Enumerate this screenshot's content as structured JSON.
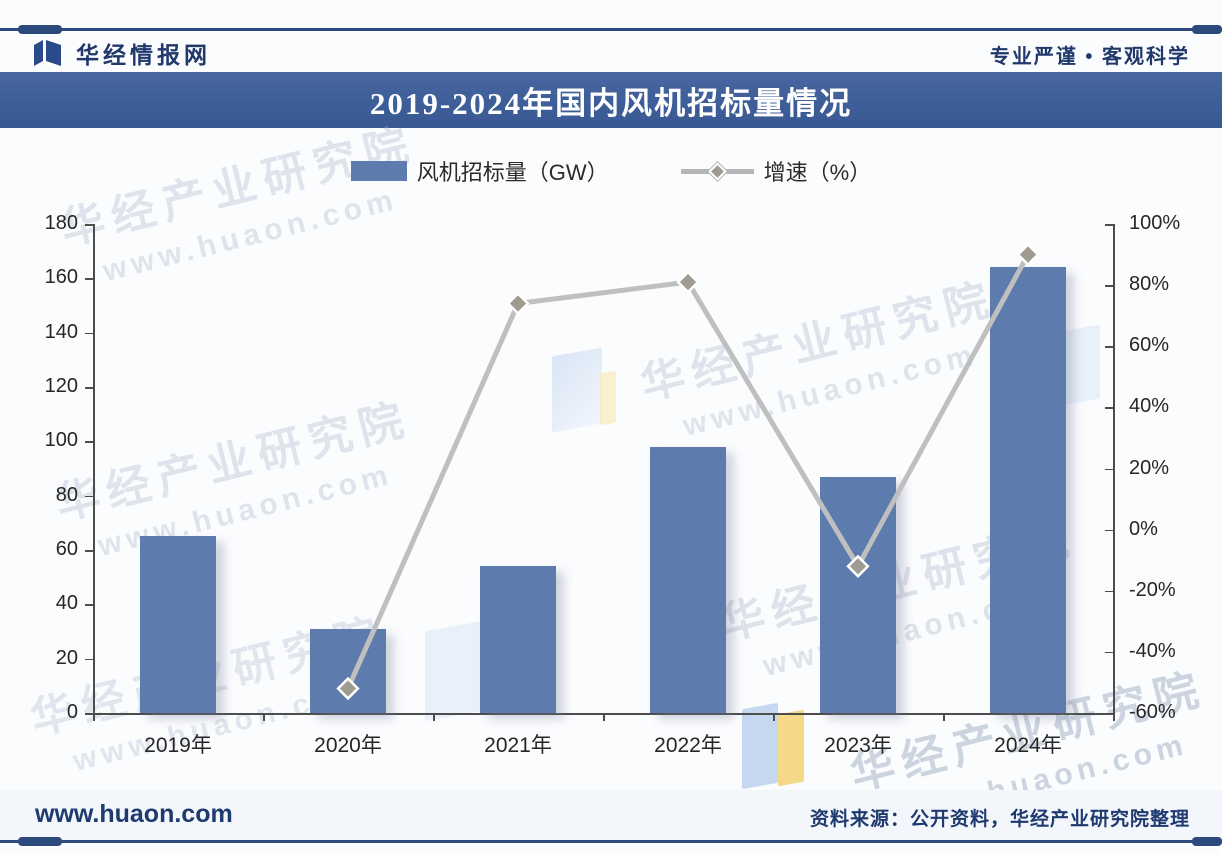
{
  "header": {
    "brand": "华经情报网",
    "slogan": "专业严谨 • 客观科学"
  },
  "title": "2019-2024年国内风机招标量情况",
  "legend": {
    "bar_label": "风机招标量（GW）",
    "line_label": "增速（%）"
  },
  "chart_data": {
    "type": "bar+line",
    "title": "2019-2024年国内风机招标量情况",
    "categories": [
      "2019年",
      "2020年",
      "2021年",
      "2022年",
      "2023年",
      "2024年"
    ],
    "series": [
      {
        "name": "风机招标量（GW）",
        "type": "bar",
        "axis": "left",
        "values": [
          65,
          31,
          54,
          98,
          87,
          164
        ],
        "color": "#5d7bac"
      },
      {
        "name": "增速（%）",
        "type": "line",
        "axis": "right",
        "values": [
          null,
          -52,
          74,
          81,
          -12,
          90
        ],
        "color": "#bfbfbf",
        "marker": "diamond"
      }
    ],
    "left_axis": {
      "min": 0,
      "max": 180,
      "step": 20,
      "tick_labels": [
        "0",
        "20",
        "40",
        "60",
        "80",
        "100",
        "120",
        "140",
        "160",
        "180"
      ]
    },
    "right_axis": {
      "min": -60,
      "max": 100,
      "step": 20,
      "tick_labels": [
        "-60%",
        "-40%",
        "-20%",
        "0%",
        "20%",
        "40%",
        "60%",
        "80%",
        "100%"
      ]
    },
    "grid": false,
    "legend_position": "top-center"
  },
  "watermark": {
    "line1": "华经产业研究院",
    "line2": "www.huaon.com"
  },
  "footer": {
    "site": "www.huaon.com",
    "source": "资料来源：公开资料，华经产业研究院整理"
  },
  "colors": {
    "bar": "#5d7bac",
    "line": "#bfbfbf",
    "marker_fill": "#a09b90",
    "title_bar": "#3e5e99",
    "navy_text": "#21386b"
  }
}
